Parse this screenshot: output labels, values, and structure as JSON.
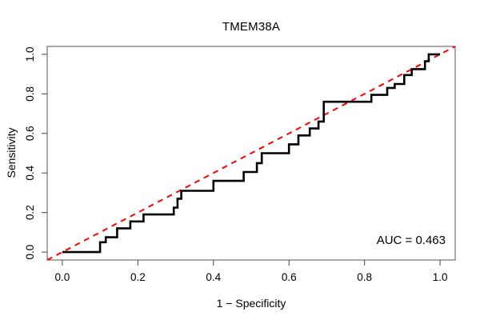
{
  "chart_data": {
    "type": "line",
    "subtype": "roc-step-curve",
    "title": "TMEM38A",
    "xlabel": "1 − Specificity",
    "ylabel": "Sensitivity",
    "auc_label": "AUC = 0.463",
    "auc_value": 0.463,
    "x_tick_labels": [
      "0.0",
      "0.2",
      "0.4",
      "0.6",
      "0.8",
      "1.0"
    ],
    "y_tick_labels": [
      "0.0",
      "0.2",
      "0.4",
      "0.6",
      "0.8",
      "1.0"
    ],
    "xlim": [
      -0.04,
      1.04
    ],
    "ylim": [
      -0.04,
      1.04
    ],
    "grid": "off",
    "legend": "none",
    "curve_color": "#000000",
    "diagonal_color": "#ff0000",
    "diagonal_style": "dashed",
    "diagonal": {
      "from": [
        0,
        0
      ],
      "to": [
        1,
        1
      ]
    },
    "series": [
      {
        "name": "ROC curve",
        "points": [
          [
            0.0,
            0.0
          ],
          [
            0.1,
            0.0
          ],
          [
            0.1,
            0.05
          ],
          [
            0.115,
            0.05
          ],
          [
            0.115,
            0.075
          ],
          [
            0.145,
            0.075
          ],
          [
            0.145,
            0.12
          ],
          [
            0.18,
            0.12
          ],
          [
            0.18,
            0.155
          ],
          [
            0.215,
            0.155
          ],
          [
            0.215,
            0.19
          ],
          [
            0.295,
            0.19
          ],
          [
            0.295,
            0.225
          ],
          [
            0.305,
            0.225
          ],
          [
            0.305,
            0.27
          ],
          [
            0.315,
            0.27
          ],
          [
            0.315,
            0.31
          ],
          [
            0.4,
            0.31
          ],
          [
            0.4,
            0.36
          ],
          [
            0.48,
            0.36
          ],
          [
            0.48,
            0.405
          ],
          [
            0.515,
            0.405
          ],
          [
            0.515,
            0.45
          ],
          [
            0.528,
            0.45
          ],
          [
            0.528,
            0.5
          ],
          [
            0.6,
            0.5
          ],
          [
            0.6,
            0.545
          ],
          [
            0.625,
            0.545
          ],
          [
            0.625,
            0.59
          ],
          [
            0.655,
            0.59
          ],
          [
            0.655,
            0.625
          ],
          [
            0.678,
            0.625
          ],
          [
            0.678,
            0.66
          ],
          [
            0.692,
            0.66
          ],
          [
            0.692,
            0.76
          ],
          [
            0.818,
            0.76
          ],
          [
            0.818,
            0.795
          ],
          [
            0.86,
            0.795
          ],
          [
            0.86,
            0.83
          ],
          [
            0.88,
            0.83
          ],
          [
            0.88,
            0.85
          ],
          [
            0.905,
            0.85
          ],
          [
            0.905,
            0.895
          ],
          [
            0.925,
            0.895
          ],
          [
            0.925,
            0.925
          ],
          [
            0.96,
            0.925
          ],
          [
            0.96,
            0.965
          ],
          [
            0.97,
            0.965
          ],
          [
            0.97,
            1.0
          ],
          [
            1.0,
            1.0
          ]
        ]
      }
    ]
  }
}
